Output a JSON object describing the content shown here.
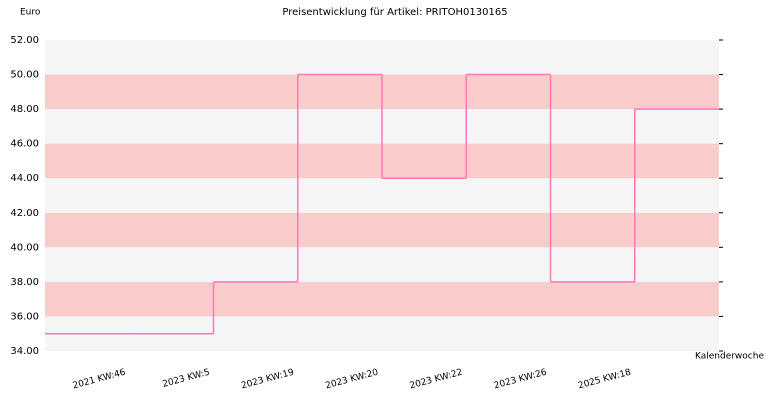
{
  "chart_data": {
    "type": "step",
    "title": "Preisentwicklung für Artikel: PRITOH0130165",
    "y_label": "Euro",
    "x_label": "Kalenderwoche",
    "categories": [
      null,
      "2021 KW:46",
      "2023 KW:5",
      "2023 KW:19",
      "2023 KW:20",
      "2023 KW:22",
      "2023 KW:26",
      "2025 KW:18"
    ],
    "values": [
      35,
      35,
      38,
      50,
      44,
      50,
      38,
      48
    ],
    "color": "#ff77bb",
    "band_colors": [
      "#f5f5f5",
      "#f9cccc"
    ],
    "ylim": [
      34,
      52
    ],
    "yticks": [
      {
        "value": 34,
        "label": "34.00"
      },
      {
        "value": 36,
        "label": "36.00"
      },
      {
        "value": 38,
        "label": "38.00"
      },
      {
        "value": 40,
        "label": "40.00"
      },
      {
        "value": 42,
        "label": "42.00"
      },
      {
        "value": 44,
        "label": "44.00"
      },
      {
        "value": 46,
        "label": "46.00"
      },
      {
        "value": 48,
        "label": "48.00"
      },
      {
        "value": 50,
        "label": "50.00"
      },
      {
        "value": 52,
        "label": "52.00"
      }
    ]
  }
}
